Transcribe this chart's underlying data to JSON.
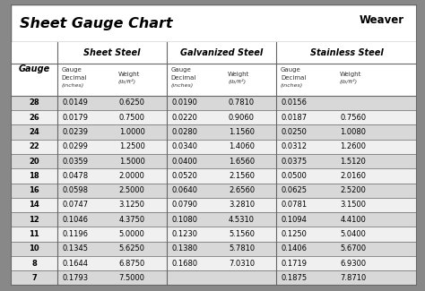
{
  "title": "Sheet Gauge Chart",
  "bg_outer": "#888888",
  "bg_white": "#ffffff",
  "bg_light": "#f0f0f0",
  "bg_dark": "#d8d8d8",
  "border": "#666666",
  "text_dark": "#111111",
  "text_gray": "#444444",
  "gauges": [
    "28",
    "26",
    "24",
    "22",
    "20",
    "18",
    "16",
    "14",
    "12",
    "11",
    "10",
    "8",
    "7"
  ],
  "ss_dec": [
    "0.0149",
    "0.0179",
    "0.0239",
    "0.0299",
    "0.0359",
    "0.0478",
    "0.0598",
    "0.0747",
    "0.1046",
    "0.1196",
    "0.1345",
    "0.1644",
    "0.1793"
  ],
  "ss_wt": [
    "0.6250",
    "0.7500",
    "1.0000",
    "1.2500",
    "1.5000",
    "2.0000",
    "2.5000",
    "3.1250",
    "4.3750",
    "5.0000",
    "5.6250",
    "6.8750",
    "7.5000"
  ],
  "gs_dec": [
    "0.0190",
    "0.0220",
    "0.0280",
    "0.0340",
    "0.0400",
    "0.0520",
    "0.0640",
    "0.0790",
    "0.1080",
    "0.1230",
    "0.1380",
    "0.1680",
    ""
  ],
  "gs_wt": [
    "0.7810",
    "0.9060",
    "1.1560",
    "1.4060",
    "1.6560",
    "2.1560",
    "2.6560",
    "3.2810",
    "4.5310",
    "5.1560",
    "5.7810",
    "7.0310",
    ""
  ],
  "st_dec": [
    "0.0156",
    "0.0187",
    "0.0250",
    "0.0312",
    "0.0375",
    "0.0500",
    "0.0625",
    "0.0781",
    "0.1094",
    "0.1250",
    "0.1406",
    "0.1719",
    "0.1875"
  ],
  "st_wt": [
    "",
    "0.7560",
    "1.0080",
    "1.2600",
    "1.5120",
    "2.0160",
    "2.5200",
    "3.1500",
    "4.4100",
    "5.0400",
    "5.6700",
    "6.9300",
    "7.8710"
  ]
}
